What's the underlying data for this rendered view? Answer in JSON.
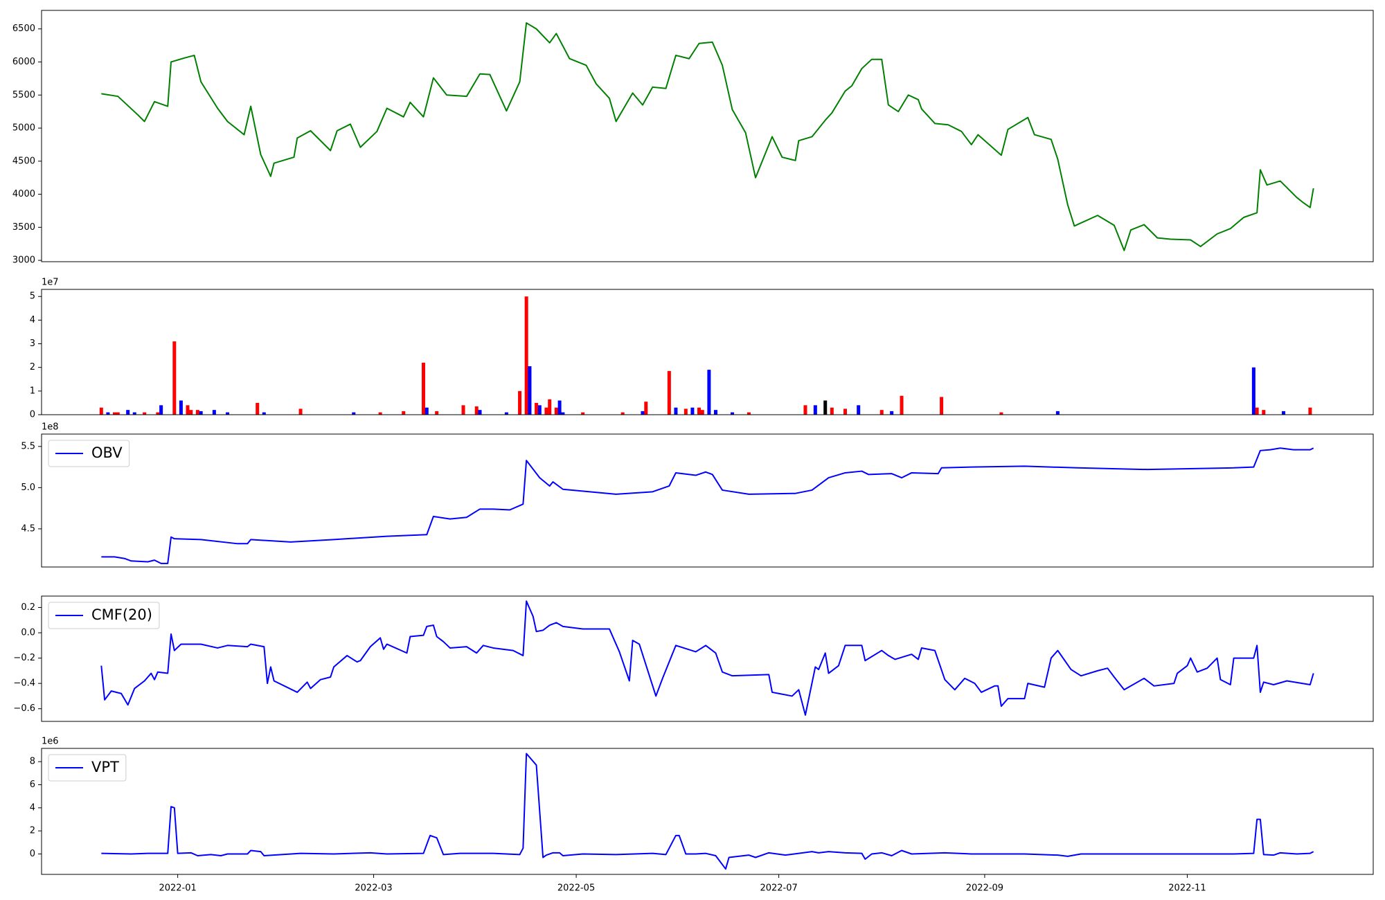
{
  "chart_data": [
    {
      "type": "line",
      "color": "green",
      "xlim": [
        -41,
        360
      ],
      "ylim": [
        2980,
        6780
      ],
      "yticks": [
        3000,
        3500,
        4000,
        4500,
        5000,
        5500,
        6000,
        6500
      ],
      "x": [
        -23,
        -18,
        -12,
        -10,
        -7,
        -3,
        -2,
        2,
        5,
        7,
        12,
        15,
        20,
        22,
        25,
        28,
        29,
        35,
        36,
        40,
        46,
        48,
        52,
        55,
        60,
        63,
        68,
        70,
        74,
        77,
        81,
        87,
        91,
        94,
        99,
        103,
        105,
        108,
        112,
        114,
        118,
        123,
        126,
        130,
        132,
        137,
        140,
        143,
        147,
        150,
        154,
        157,
        161,
        164,
        167,
        171,
        174,
        179,
        182,
        186,
        187,
        191,
        195,
        197,
        201,
        203,
        206,
        209,
        212,
        214,
        217,
        220,
        223,
        224,
        228,
        232,
        236,
        239,
        241,
        248,
        250,
        256,
        258,
        263,
        265,
        268,
        270,
        277,
        282,
        285,
        287,
        291,
        295,
        299,
        305,
        308,
        313,
        317,
        321,
        325,
        326,
        328,
        332,
        337,
        339,
        341,
        342
      ],
      "values": [
        5520,
        5480,
        5200,
        5100,
        5400,
        5330,
        6000,
        6060,
        6100,
        5700,
        5300,
        5100,
        4900,
        5330,
        4600,
        4270,
        4470,
        4560,
        4850,
        4960,
        4660,
        4960,
        5060,
        4710,
        4950,
        5300,
        5170,
        5390,
        5170,
        5760,
        5500,
        5480,
        5820,
        5810,
        5260,
        5700,
        6590,
        6500,
        6290,
        6430,
        6050,
        5950,
        5670,
        5450,
        5100,
        5530,
        5350,
        5620,
        5600,
        6100,
        6050,
        6280,
        6300,
        5950,
        5280,
        4930,
        4250,
        4870,
        4560,
        4510,
        4810,
        4870,
        5120,
        5230,
        5560,
        5640,
        5900,
        6040,
        6040,
        5350,
        5250,
        5500,
        5430,
        5290,
        5070,
        5050,
        4950,
        4750,
        4900,
        4590,
        4980,
        5160,
        4900,
        4830,
        4530,
        3840,
        3520,
        3680,
        3530,
        3150,
        3460,
        3540,
        3340,
        3320,
        3310,
        3210,
        3400,
        3480,
        3650,
        3720,
        4370,
        4140,
        4200,
        3950,
        3870,
        3800,
        4090
      ]
    },
    {
      "type": "bar",
      "offset_label": "1e7",
      "xlim": [
        -41,
        360
      ],
      "ylim": [
        0,
        53000000
      ],
      "yticks": [
        0,
        {
          "value": 10000000,
          "label": "1"
        },
        {
          "value": 20000000,
          "label": "2"
        },
        {
          "value": 30000000,
          "label": "3"
        },
        {
          "value": 40000000,
          "label": "4"
        },
        {
          "value": 50000000,
          "label": "5"
        }
      ],
      "x": [
        -23,
        -21,
        -19,
        -18,
        -15,
        -13,
        -10,
        -6,
        -5,
        -1,
        1,
        3,
        4,
        6,
        7,
        11,
        15,
        24,
        26,
        37,
        53,
        61,
        68,
        74,
        75,
        78,
        86,
        90,
        91,
        99,
        103,
        105,
        106,
        108,
        109,
        111,
        112,
        114,
        115,
        116,
        122,
        134,
        140,
        141,
        148,
        150,
        153,
        155,
        157,
        158,
        160,
        162,
        167,
        172,
        189,
        192,
        195,
        197,
        201,
        205,
        212,
        215,
        218,
        230,
        248,
        265,
        324,
        325,
        327,
        333,
        341
      ],
      "values": [
        3000000,
        1000000,
        1000000,
        1000000,
        2000000,
        1000000,
        1000000,
        1000000,
        4000000,
        31000000,
        6000000,
        4000000,
        2000000,
        2000000,
        1500000,
        2000000,
        1000000,
        5000000,
        1000000,
        2500000,
        1000000,
        1000000,
        1500000,
        22000000,
        3000000,
        1500000,
        4000000,
        3500000,
        2000000,
        1000000,
        10000000,
        50000000,
        20500000,
        5000000,
        4000000,
        3000000,
        6500000,
        3000000,
        6000000,
        1000000,
        1000000,
        1000000,
        1500000,
        5500000,
        18500000,
        3000000,
        2500000,
        3000000,
        3000000,
        2000000,
        19000000,
        2000000,
        1000000,
        1000000,
        4000000,
        4000000,
        6000000,
        3000000,
        2500000,
        4000000,
        2000000,
        1500000,
        8000000,
        7500000,
        1000000,
        1500000,
        20000000,
        3000000,
        2000000,
        1500000,
        3000000
      ],
      "colors": [
        "red",
        "blue",
        "red",
        "red",
        "blue",
        "blue",
        "red",
        "red",
        "blue",
        "red",
        "blue",
        "red",
        "red",
        "red",
        "blue",
        "blue",
        "blue",
        "red",
        "blue",
        "red",
        "blue",
        "red",
        "red",
        "red",
        "blue",
        "red",
        "red",
        "red",
        "blue",
        "blue",
        "red",
        "red",
        "blue",
        "red",
        "blue",
        "red",
        "red",
        "red",
        "blue",
        "blue",
        "red",
        "red",
        "blue",
        "red",
        "red",
        "blue",
        "red",
        "blue",
        "red",
        "red",
        "blue",
        "blue",
        "blue",
        "red",
        "red",
        "blue",
        "black",
        "red",
        "red",
        "blue",
        "red",
        "blue",
        "red",
        "red",
        "red",
        "blue",
        "blue",
        "red",
        "red",
        "blue",
        "red"
      ]
    },
    {
      "type": "line",
      "offset_label": "1e8",
      "legend": "upper left",
      "xlim": [
        -41,
        360
      ],
      "ylim": [
        403700000,
        565000000
      ],
      "yticks": [
        {
          "value": 450000000,
          "label": "4.5"
        },
        {
          "value": 500000000,
          "label": "5.0"
        },
        {
          "value": 550000000,
          "label": "5.5"
        }
      ],
      "x": [
        -23,
        -19,
        -16,
        -14,
        -9,
        -7,
        -5,
        -3,
        -2,
        -1,
        7,
        18,
        21,
        22,
        34,
        47,
        63,
        75,
        77,
        82,
        87,
        91,
        95,
        100,
        104,
        105,
        109,
        112,
        113,
        116,
        132,
        143,
        148,
        150,
        156,
        159,
        161,
        164,
        172,
        186,
        191,
        196,
        201,
        206,
        208,
        215,
        218,
        221,
        229,
        230,
        239,
        255,
        271,
        292,
        318,
        324,
        326,
        329,
        332,
        336,
        341,
        342
      ],
      "series": [
        {
          "name": "OBV",
          "color": "blue",
          "values": [
            416000000,
            416000000,
            414000000,
            411000000,
            410000000,
            412000000,
            408000000,
            408000000,
            440000000,
            438000000,
            437000000,
            432000000,
            432000000,
            437000000,
            434000000,
            437000000,
            441000000,
            443000000,
            465000000,
            462000000,
            464000000,
            474000000,
            474000000,
            473000000,
            480000000,
            533000000,
            512000000,
            502000000,
            507000000,
            498000000,
            492000000,
            495000000,
            502000000,
            518000000,
            515000000,
            519000000,
            516000000,
            497000000,
            492000000,
            493000000,
            497000000,
            512000000,
            518000000,
            520000000,
            516000000,
            517000000,
            512000000,
            518000000,
            517000000,
            524000000,
            525000000,
            526000000,
            524000000,
            522000000,
            524000000,
            525000000,
            545000000,
            546000000,
            548000000,
            546000000,
            546000000,
            548000000
          ]
        }
      ]
    },
    {
      "type": "line",
      "legend": "upper left",
      "xlim": [
        -41,
        360
      ],
      "ylim": [
        -0.7,
        0.29
      ],
      "yticks": [
        {
          "value": -0.6,
          "label": "−0.6"
        },
        {
          "value": -0.4,
          "label": "−0.4"
        },
        {
          "value": -0.2,
          "label": "−0.2"
        },
        {
          "value": 0,
          "label": "0.0"
        },
        0.2
      ],
      "x": [
        -23,
        -22,
        -20,
        -17,
        -15,
        -13,
        -10,
        -8,
        -7,
        -6,
        -3,
        -2,
        -1,
        1,
        7,
        12,
        15,
        21,
        22,
        26,
        27,
        28,
        29,
        36,
        39,
        40,
        43,
        46,
        47,
        51,
        54,
        55,
        58,
        61,
        62,
        63,
        69,
        70,
        74,
        75,
        77,
        78,
        80,
        82,
        87,
        90,
        92,
        95,
        101,
        104,
        105,
        107,
        108,
        110,
        112,
        114,
        116,
        122,
        130,
        133,
        136,
        137,
        139,
        144,
        146,
        150,
        156,
        159,
        162,
        164,
        167,
        178,
        179,
        181,
        185,
        187,
        189,
        192,
        193,
        195,
        196,
        199,
        201,
        206,
        207,
        212,
        214,
        216,
        221,
        223,
        224,
        228,
        231,
        234,
        237,
        240,
        242,
        246,
        247,
        248,
        250,
        255,
        256,
        261,
        263,
        265,
        269,
        272,
        277,
        280,
        282,
        285,
        291,
        294,
        300,
        301,
        304,
        305,
        307,
        310,
        313,
        314,
        317,
        318,
        324,
        325,
        326,
        327,
        330,
        334,
        341,
        342
      ],
      "series": [
        {
          "name": "CMF(20)",
          "color": "blue",
          "values": [
            -0.26,
            -0.53,
            -0.46,
            -0.48,
            -0.57,
            -0.44,
            -0.38,
            -0.32,
            -0.37,
            -0.31,
            -0.32,
            -0.01,
            -0.14,
            -0.09,
            -0.09,
            -0.12,
            -0.1,
            -0.11,
            -0.09,
            -0.11,
            -0.4,
            -0.27,
            -0.38,
            -0.47,
            -0.39,
            -0.44,
            -0.37,
            -0.35,
            -0.27,
            -0.18,
            -0.23,
            -0.22,
            -0.11,
            -0.04,
            -0.13,
            -0.09,
            -0.16,
            -0.03,
            -0.02,
            0.05,
            0.06,
            -0.03,
            -0.07,
            -0.12,
            -0.11,
            -0.16,
            -0.1,
            -0.12,
            -0.14,
            -0.18,
            0.25,
            0.13,
            0.01,
            0.02,
            0.06,
            0.08,
            0.05,
            0.03,
            0.03,
            -0.15,
            -0.38,
            -0.06,
            -0.09,
            -0.5,
            -0.36,
            -0.1,
            -0.15,
            -0.1,
            -0.16,
            -0.31,
            -0.34,
            -0.33,
            -0.47,
            -0.48,
            -0.5,
            -0.45,
            -0.65,
            -0.27,
            -0.29,
            -0.16,
            -0.32,
            -0.26,
            -0.1,
            -0.1,
            -0.22,
            -0.14,
            -0.18,
            -0.21,
            -0.17,
            -0.21,
            -0.12,
            -0.14,
            -0.37,
            -0.45,
            -0.36,
            -0.4,
            -0.47,
            -0.42,
            -0.42,
            -0.58,
            -0.52,
            -0.52,
            -0.4,
            -0.43,
            -0.2,
            -0.14,
            -0.29,
            -0.34,
            -0.3,
            -0.28,
            -0.35,
            -0.45,
            -0.36,
            -0.42,
            -0.4,
            -0.32,
            -0.26,
            -0.2,
            -0.31,
            -0.28,
            -0.2,
            -0.37,
            -0.41,
            -0.2,
            -0.2,
            -0.1,
            -0.47,
            -0.39,
            -0.41,
            -0.38,
            -0.41,
            -0.32
          ]
        }
      ]
    },
    {
      "type": "line",
      "offset_label": "1e6",
      "legend": "upper left",
      "xlim": [
        -41,
        360
      ],
      "ylim": [
        -1770000,
        9150000
      ],
      "yticks": [
        0,
        {
          "value": 2000000,
          "label": "2"
        },
        {
          "value": 4000000,
          "label": "4"
        },
        {
          "value": 6000000,
          "label": "6"
        },
        {
          "value": 8000000,
          "label": "8"
        }
      ],
      "xticks": [
        {
          "value": 0,
          "label": "2022-01"
        },
        {
          "value": 59,
          "label": "2022-03"
        },
        {
          "value": 120,
          "label": "2022-05"
        },
        {
          "value": 181,
          "label": "2022-07"
        },
        {
          "value": 243,
          "label": "2022-09"
        },
        {
          "value": 304,
          "label": "2022-11"
        }
      ],
      "x": [
        -23,
        -14,
        -9,
        -3,
        -2,
        -1,
        0,
        4,
        6,
        10,
        13,
        15,
        21,
        22,
        25,
        26,
        37,
        47,
        58,
        63,
        74,
        76,
        78,
        80,
        85,
        95,
        103,
        104,
        105,
        108,
        110,
        111,
        113,
        115,
        116,
        122,
        132,
        143,
        147,
        150,
        151,
        153,
        156,
        159,
        162,
        165,
        166,
        172,
        174,
        178,
        183,
        191,
        193,
        196,
        201,
        206,
        207,
        209,
        212,
        215,
        218,
        221,
        231,
        239,
        255,
        265,
        268,
        272,
        292,
        318,
        324,
        325,
        326,
        327,
        330,
        332,
        337,
        341,
        342
      ],
      "series": [
        {
          "name": "VPT",
          "color": "blue",
          "values": [
            50000,
            0,
            50000,
            50000,
            4100000,
            4000000,
            50000,
            100000,
            -150000,
            -50000,
            -150000,
            0,
            0,
            300000,
            200000,
            -150000,
            50000,
            0,
            100000,
            0,
            50000,
            1600000,
            1400000,
            -50000,
            50000,
            50000,
            -50000,
            500000,
            8700000,
            7700000,
            -300000,
            -100000,
            100000,
            100000,
            -150000,
            0,
            -50000,
            50000,
            -50000,
            1600000,
            1600000,
            0,
            0,
            50000,
            -150000,
            -1300000,
            -300000,
            -100000,
            -300000,
            100000,
            -100000,
            200000,
            100000,
            200000,
            100000,
            50000,
            -450000,
            0,
            100000,
            -150000,
            300000,
            0,
            100000,
            0,
            0,
            -100000,
            -200000,
            0,
            0,
            0,
            50000,
            3000000,
            3000000,
            -50000,
            -100000,
            100000,
            0,
            50000,
            200000
          ]
        }
      ]
    }
  ]
}
